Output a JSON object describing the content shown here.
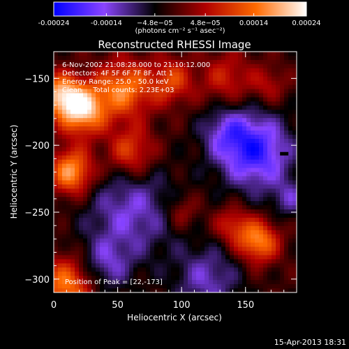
{
  "chart_data": {
    "type": "heatmap",
    "title": "Reconstructed RHESSI Image",
    "xlabel": "Heliocentric X (arcsec)",
    "ylabel": "Heliocentric Y (arcsec)",
    "xlim": [
      0,
      190
    ],
    "ylim": [
      -310,
      -130
    ],
    "x_ticks": [
      0,
      50,
      100,
      150
    ],
    "y_ticks": [
      -150,
      -200,
      -250,
      -300
    ],
    "colorbar": {
      "ticks": [
        "-0.00024",
        "-0.00014",
        "−4.8e−05",
        "4.8e−05",
        "0.00014",
        "0.00024"
      ],
      "tick_values": [
        -0.00024,
        -0.00014,
        -4.8e-05,
        4.8e-05,
        0.00014,
        0.00024
      ],
      "range": [
        -0.00024,
        0.00024
      ],
      "units_label": "(photons cm⁻² s⁻¹ asec⁻²)",
      "colors": [
        "#0000ff",
        "#8a44ff",
        "#000000",
        "#b00000",
        "#ff6a00",
        "#ffffff"
      ]
    },
    "annotations": [
      "6-Nov-2002 21:08:28.000 to 21:10:12.000",
      "Detectors: 4F 5F 6F 7F 8F, Att 1",
      "Energy Range: 25.0 - 50.0 keV",
      "Clean     Total counts: 2.23E+03"
    ],
    "peak_label": "Position of Peak = [22,-173]",
    "peak": [
      22,
      -173
    ],
    "sources": [
      {
        "x": 22,
        "y": -173,
        "sigma": 13,
        "amp": 0.00024
      },
      {
        "x": 4,
        "y": -162,
        "sigma": 11,
        "amp": 0.00018
      },
      {
        "x": 14,
        "y": -220,
        "sigma": 12,
        "amp": 0.0002
      },
      {
        "x": 55,
        "y": -158,
        "sigma": 15,
        "amp": 0.00017
      },
      {
        "x": 60,
        "y": -205,
        "sigma": 13,
        "amp": 0.00013
      },
      {
        "x": 92,
        "y": -152,
        "sigma": 12,
        "amp": 0.00012
      },
      {
        "x": 135,
        "y": -150,
        "sigma": 14,
        "amp": 9e-05
      },
      {
        "x": 168,
        "y": -155,
        "sigma": 10,
        "amp": 7e-05
      },
      {
        "x": 160,
        "y": -272,
        "sigma": 11,
        "amp": 0.00018
      },
      {
        "x": 140,
        "y": -260,
        "sigma": 10,
        "amp": 0.0001
      },
      {
        "x": 10,
        "y": -305,
        "sigma": 15,
        "amp": 0.00017
      },
      {
        "x": 100,
        "y": -250,
        "sigma": 9,
        "amp": 7e-05
      },
      {
        "x": 158,
        "y": -205,
        "sigma": 20,
        "amp": -0.00018
      },
      {
        "x": 60,
        "y": -250,
        "sigma": 25,
        "amp": -0.00011
      },
      {
        "x": 120,
        "y": -300,
        "sigma": 18,
        "amp": -0.0001
      },
      {
        "x": 135,
        "y": -190,
        "sigma": 14,
        "amp": -9e-05
      },
      {
        "x": 40,
        "y": -290,
        "sigma": 14,
        "amp": -9e-05
      },
      {
        "x": 185,
        "y": -240,
        "sigma": 10,
        "amp": -8e-05
      }
    ],
    "background": -2e-05
  },
  "footer": {
    "timestamp": "15-Apr-2013 18:31"
  }
}
